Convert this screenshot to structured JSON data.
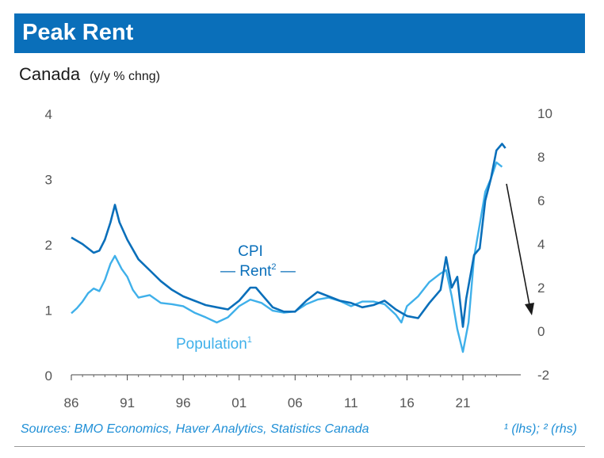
{
  "header": {
    "title": "Peak Rent"
  },
  "subtitle": {
    "region": "Canada",
    "unit": "(y/y % chng)"
  },
  "footer": {
    "sources": "Sources: BMO Economics, Haver Analytics, Statistics Canada",
    "footnote": "¹ (lhs); ² (rhs)"
  },
  "colors": {
    "banner": "#0a6fba",
    "cpi_rent": "#0a6fba",
    "population": "#3fb0ea",
    "arrow": "#1a1a1a"
  },
  "chart_data": {
    "type": "line",
    "x_ticks": [
      "86",
      "91",
      "96",
      "01",
      "06",
      "11",
      "16",
      "21"
    ],
    "y_left": {
      "ticks": [
        "0",
        "1",
        "2",
        "3",
        "4"
      ],
      "ylim": [
        0,
        4
      ]
    },
    "y_right": {
      "ticks": [
        "-2",
        "0",
        "2",
        "4",
        "6",
        "8",
        "10"
      ],
      "ylim": [
        -2,
        10
      ]
    },
    "grid": false,
    "annotations": {
      "cpi_label_line1": "CPI",
      "cpi_label_line2": "— Rent",
      "cpi_sup": "2",
      "cpi_dash": "—",
      "population_label": "Population",
      "population_sup": "1"
    },
    "series": [
      {
        "name": "CPI Rent",
        "axis": "right",
        "points": [
          [
            1986.0,
            4.3
          ],
          [
            1987.0,
            4.0
          ],
          [
            1988.0,
            3.6
          ],
          [
            1988.5,
            3.7
          ],
          [
            1989.0,
            4.2
          ],
          [
            1989.5,
            5.0
          ],
          [
            1989.9,
            5.8
          ],
          [
            1990.3,
            5.0
          ],
          [
            1991.0,
            4.2
          ],
          [
            1992.0,
            3.3
          ],
          [
            1993.0,
            2.8
          ],
          [
            1994.0,
            2.3
          ],
          [
            1995.0,
            1.9
          ],
          [
            1996.0,
            1.6
          ],
          [
            1997.0,
            1.4
          ],
          [
            1998.0,
            1.2
          ],
          [
            1999.0,
            1.1
          ],
          [
            2000.0,
            1.0
          ],
          [
            2001.0,
            1.4
          ],
          [
            2002.0,
            2.0
          ],
          [
            2002.5,
            2.0
          ],
          [
            2003.0,
            1.7
          ],
          [
            2004.0,
            1.1
          ],
          [
            2005.0,
            0.9
          ],
          [
            2006.0,
            0.9
          ],
          [
            2007.0,
            1.4
          ],
          [
            2008.0,
            1.8
          ],
          [
            2009.0,
            1.6
          ],
          [
            2010.0,
            1.4
          ],
          [
            2011.0,
            1.3
          ],
          [
            2012.0,
            1.1
          ],
          [
            2013.0,
            1.2
          ],
          [
            2014.0,
            1.4
          ],
          [
            2015.0,
            1.0
          ],
          [
            2016.0,
            0.7
          ],
          [
            2017.0,
            0.6
          ],
          [
            2018.0,
            1.3
          ],
          [
            2019.0,
            1.9
          ],
          [
            2019.5,
            3.4
          ],
          [
            2020.0,
            2.0
          ],
          [
            2020.5,
            2.5
          ],
          [
            2021.0,
            0.2
          ],
          [
            2021.3,
            1.5
          ],
          [
            2022.0,
            3.5
          ],
          [
            2022.5,
            3.8
          ],
          [
            2023.0,
            6.0
          ],
          [
            2023.5,
            7.0
          ],
          [
            2024.0,
            8.3
          ],
          [
            2024.5,
            8.6
          ],
          [
            2024.8,
            8.4
          ]
        ]
      },
      {
        "name": "Population",
        "axis": "left",
        "points": [
          [
            1986.0,
            0.94
          ],
          [
            1986.5,
            1.02
          ],
          [
            1987.0,
            1.12
          ],
          [
            1987.5,
            1.25
          ],
          [
            1988.0,
            1.32
          ],
          [
            1988.5,
            1.28
          ],
          [
            1989.0,
            1.45
          ],
          [
            1989.5,
            1.7
          ],
          [
            1989.9,
            1.82
          ],
          [
            1990.5,
            1.62
          ],
          [
            1991.0,
            1.5
          ],
          [
            1991.5,
            1.3
          ],
          [
            1992.0,
            1.18
          ],
          [
            1993.0,
            1.22
          ],
          [
            1994.0,
            1.1
          ],
          [
            1995.0,
            1.08
          ],
          [
            1996.0,
            1.05
          ],
          [
            1997.0,
            0.95
          ],
          [
            1998.0,
            0.88
          ],
          [
            1999.0,
            0.8
          ],
          [
            2000.0,
            0.88
          ],
          [
            2001.0,
            1.05
          ],
          [
            2002.0,
            1.15
          ],
          [
            2003.0,
            1.1
          ],
          [
            2004.0,
            0.98
          ],
          [
            2005.0,
            0.95
          ],
          [
            2006.0,
            0.97
          ],
          [
            2007.0,
            1.08
          ],
          [
            2008.0,
            1.15
          ],
          [
            2009.0,
            1.18
          ],
          [
            2010.0,
            1.13
          ],
          [
            2011.0,
            1.05
          ],
          [
            2012.0,
            1.12
          ],
          [
            2013.0,
            1.12
          ],
          [
            2014.0,
            1.08
          ],
          [
            2015.0,
            0.92
          ],
          [
            2015.5,
            0.8
          ],
          [
            2016.0,
            1.05
          ],
          [
            2017.0,
            1.2
          ],
          [
            2018.0,
            1.42
          ],
          [
            2019.0,
            1.55
          ],
          [
            2019.5,
            1.6
          ],
          [
            2020.0,
            1.2
          ],
          [
            2020.5,
            0.7
          ],
          [
            2021.0,
            0.35
          ],
          [
            2021.5,
            0.8
          ],
          [
            2022.0,
            1.8
          ],
          [
            2022.5,
            2.3
          ],
          [
            2023.0,
            2.8
          ],
          [
            2023.5,
            3.0
          ],
          [
            2024.0,
            3.25
          ],
          [
            2024.5,
            3.18
          ]
        ]
      }
    ]
  }
}
